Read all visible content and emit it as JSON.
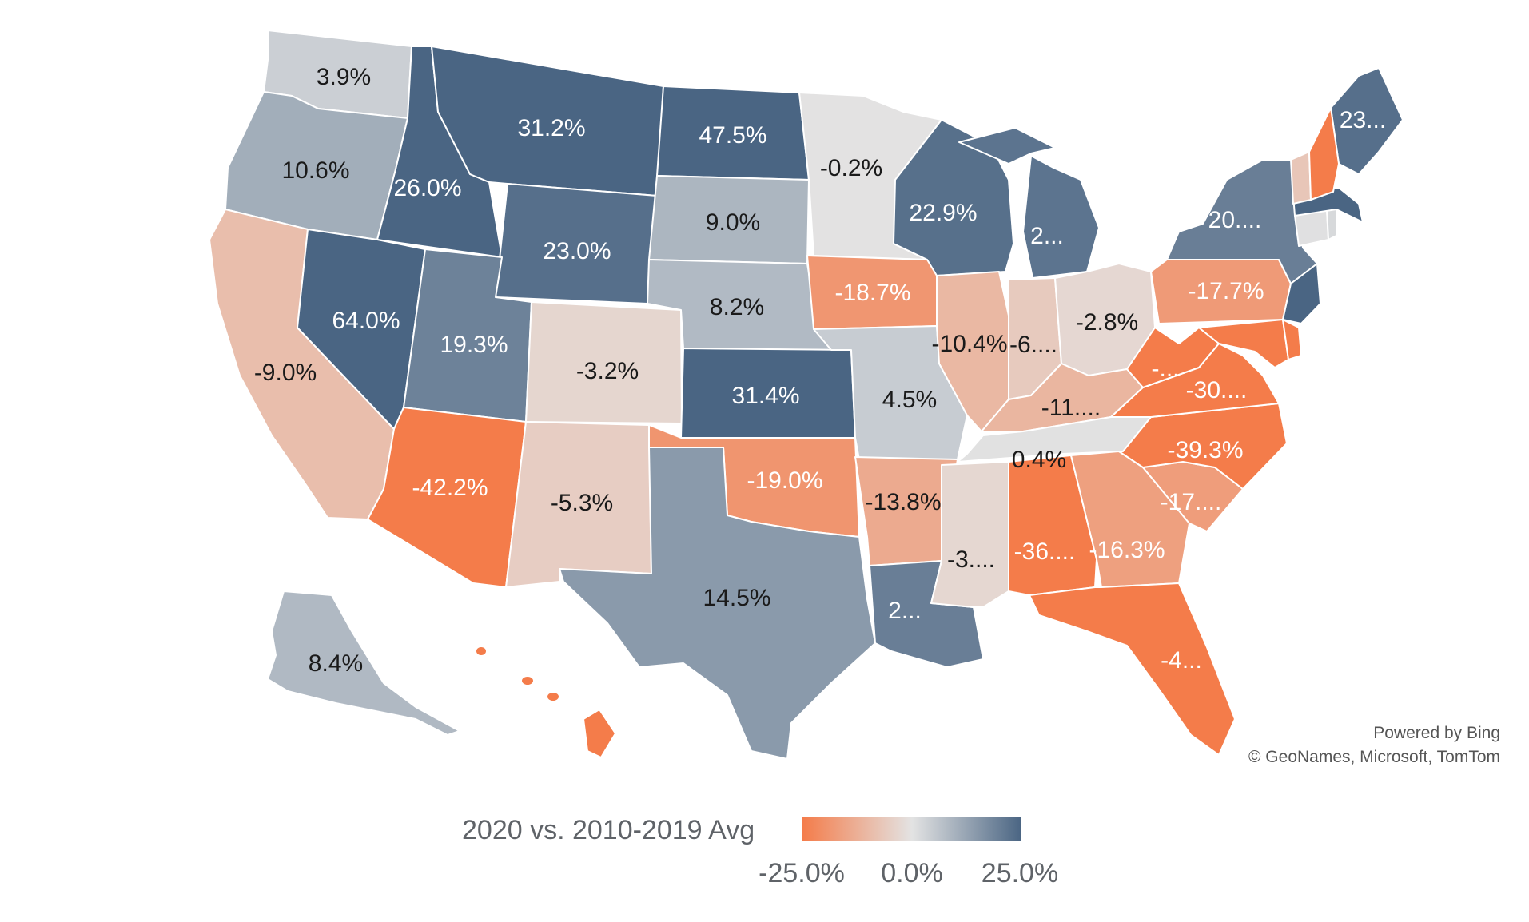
{
  "map": {
    "title": "2020 vs. 2010-2019 Avg",
    "legend": {
      "min_label": "-25.0%",
      "mid_label": "0.0%",
      "max_label": "25.0%",
      "min": -25,
      "max": 25
    },
    "colors": {
      "negative": "#f47c4a",
      "neutral": "#e3e3e3",
      "positive": "#4a6583"
    },
    "attribution": {
      "line1": "Powered by Bing",
      "line2": "© GeoNames, Microsoft, TomTom"
    },
    "states": [
      {
        "abbr": "WA",
        "value": 3.9,
        "label": "3.9%"
      },
      {
        "abbr": "OR",
        "value": 10.6,
        "label": "10.6%"
      },
      {
        "abbr": "CA",
        "value": -9.0,
        "label": "-9.0%"
      },
      {
        "abbr": "ID",
        "value": 26.0,
        "label": "26.0%"
      },
      {
        "abbr": "NV",
        "value": 64.0,
        "label": "64.0%"
      },
      {
        "abbr": "MT",
        "value": 31.2,
        "label": "31.2%"
      },
      {
        "abbr": "WY",
        "value": 23.0,
        "label": "23.0%"
      },
      {
        "abbr": "UT",
        "value": 19.3,
        "label": "19.3%"
      },
      {
        "abbr": "AZ",
        "value": -42.2,
        "label": "-42.2%"
      },
      {
        "abbr": "CO",
        "value": -3.2,
        "label": "-3.2%"
      },
      {
        "abbr": "NM",
        "value": -5.3,
        "label": "-5.3%"
      },
      {
        "abbr": "ND",
        "value": 47.5,
        "label": "47.5%"
      },
      {
        "abbr": "SD",
        "value": 9.0,
        "label": "9.0%"
      },
      {
        "abbr": "NE",
        "value": 8.2,
        "label": "8.2%"
      },
      {
        "abbr": "KS",
        "value": 31.4,
        "label": "31.4%"
      },
      {
        "abbr": "OK",
        "value": -19.0,
        "label": "-19.0%"
      },
      {
        "abbr": "TX",
        "value": 14.5,
        "label": "14.5%"
      },
      {
        "abbr": "MN",
        "value": -0.2,
        "label": "-0.2%"
      },
      {
        "abbr": "IA",
        "value": -18.7,
        "label": "-18.7%"
      },
      {
        "abbr": "MO",
        "value": 4.5,
        "label": "4.5%"
      },
      {
        "abbr": "AR",
        "value": -13.8,
        "label": "-13.8%"
      },
      {
        "abbr": "LA",
        "value": 20.0,
        "label": "2..."
      },
      {
        "abbr": "WI",
        "value": 22.9,
        "label": "22.9%"
      },
      {
        "abbr": "IL",
        "value": -10.4,
        "label": "-10.4%"
      },
      {
        "abbr": "MI",
        "value": 22.0,
        "label": "2..."
      },
      {
        "abbr": "IN",
        "value": -6.0,
        "label": "-6...."
      },
      {
        "abbr": "OH",
        "value": -2.8,
        "label": "-2.8%"
      },
      {
        "abbr": "KY",
        "value": -11.0,
        "label": "-11...."
      },
      {
        "abbr": "TN",
        "value": 0.4,
        "label": "0.4%"
      },
      {
        "abbr": "MS",
        "value": -3.0,
        "label": "-3...."
      },
      {
        "abbr": "AL",
        "value": -36.0,
        "label": "-36...."
      },
      {
        "abbr": "GA",
        "value": -16.3,
        "label": "-16.3%"
      },
      {
        "abbr": "FL",
        "value": -40.0,
        "label": "-4..."
      },
      {
        "abbr": "SC",
        "value": -17.0,
        "label": "-17...."
      },
      {
        "abbr": "NC",
        "value": -39.3,
        "label": "-39.3%"
      },
      {
        "abbr": "VA",
        "value": -30.0,
        "label": "-30...."
      },
      {
        "abbr": "WV",
        "value": -30.0,
        "label": "-..."
      },
      {
        "abbr": "PA",
        "value": -17.7,
        "label": "-17.7%"
      },
      {
        "abbr": "NY",
        "value": 20.0,
        "label": "20...."
      },
      {
        "abbr": "ME",
        "value": 23.0,
        "label": "23..."
      },
      {
        "abbr": "AK",
        "value": 8.4,
        "label": "8.4%"
      },
      {
        "abbr": "MD",
        "value": -30.0
      },
      {
        "abbr": "DE",
        "value": -30.0
      },
      {
        "abbr": "NJ",
        "value": 25.0
      },
      {
        "abbr": "CT",
        "value": 0.5
      },
      {
        "abbr": "RI",
        "value": 2.0
      },
      {
        "abbr": "MA",
        "value": 25.0
      },
      {
        "abbr": "VT",
        "value": -7.0
      },
      {
        "abbr": "NH",
        "value": -40.0
      },
      {
        "abbr": "HI",
        "value": -40.0
      }
    ]
  }
}
